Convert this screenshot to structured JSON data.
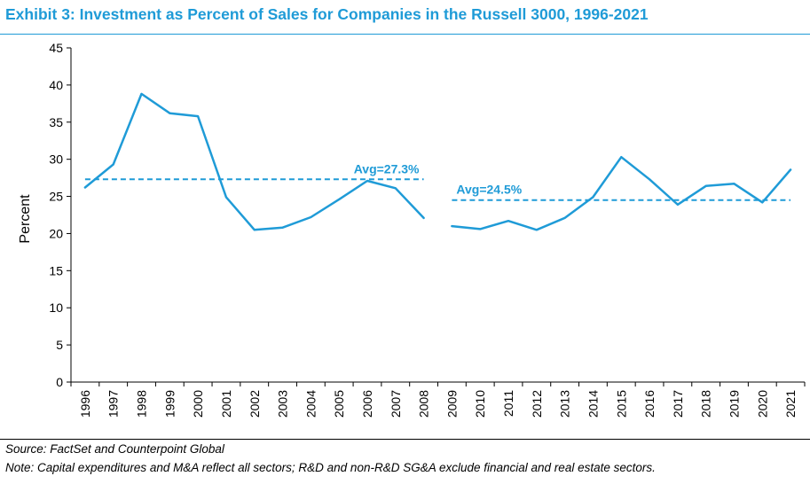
{
  "title": "Exhibit 3: Investment as Percent of Sales for Companies in the Russell 3000, 1996-2021",
  "source": "Source: FactSet and Counterpoint Global",
  "note": "Note: Capital expenditures and M&A reflect all sectors; R&D and non-R&D SG&A exclude financial and real estate sectors.",
  "chart_data": {
    "type": "line",
    "xlabel": "",
    "ylabel": "Percent",
    "ylim": [
      0,
      45
    ],
    "yticks": [
      0,
      5,
      10,
      15,
      20,
      25,
      30,
      35,
      40,
      45
    ],
    "grid": false,
    "categories": [
      "1996",
      "1997",
      "1998",
      "1999",
      "2000",
      "2001",
      "2002",
      "2003",
      "2004",
      "2005",
      "2006",
      "2007",
      "2008",
      "2009",
      "2010",
      "2011",
      "2012",
      "2013",
      "2014",
      "2015",
      "2016",
      "2017",
      "2018",
      "2019",
      "2020",
      "2021"
    ],
    "series": [
      {
        "values": [
          26.2,
          29.3,
          38.8,
          36.2,
          35.8,
          24.9,
          20.5,
          20.8,
          22.2,
          24.6,
          27.1,
          26.1,
          22.1,
          null,
          null,
          null,
          null,
          null,
          null,
          null,
          null,
          null,
          null,
          null,
          null,
          null
        ],
        "color": "#1f9bd7"
      },
      {
        "values": [
          null,
          null,
          null,
          null,
          null,
          null,
          null,
          null,
          null,
          null,
          null,
          null,
          null,
          21.0,
          20.6,
          21.7,
          20.5,
          22.1,
          24.9,
          30.3,
          27.3,
          23.9,
          26.4,
          26.7,
          24.2,
          28.6
        ],
        "color": "#1f9bd7"
      }
    ],
    "averages": [
      {
        "label": "Avg=27.3%",
        "value": 27.3,
        "from": "1996",
        "to": "2008"
      },
      {
        "label": "Avg=24.5%",
        "value": 24.5,
        "from": "2009",
        "to": "2021"
      }
    ],
    "color": "#1f9bd7"
  }
}
